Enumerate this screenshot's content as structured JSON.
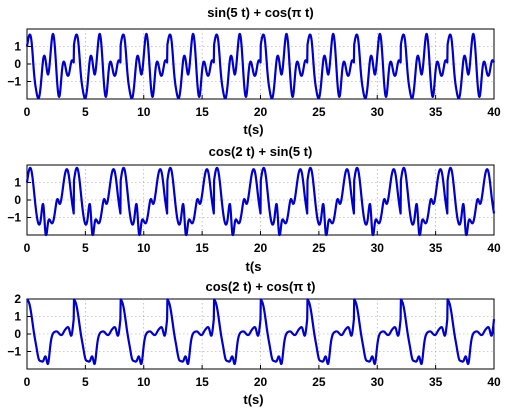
{
  "chart_data": [
    {
      "type": "line",
      "title": "sin(5 t) + cos(π t)",
      "xlabel": "t(s)",
      "ylabel": "",
      "xlim": [
        0,
        40
      ],
      "ylim": [
        -2,
        2
      ],
      "xticks": [
        0,
        5,
        10,
        15,
        20,
        25,
        30,
        35,
        40
      ],
      "yticks": [
        -1,
        0,
        1
      ],
      "grid": true,
      "series": [
        {
          "expression": "sin(5 t) + cos(π t)",
          "color": "#0000cc",
          "x": [
            0,
            0.2,
            0.4,
            0.6,
            0.8,
            1,
            1.2,
            1.4,
            1.6,
            1.8,
            2,
            2.2,
            2.4,
            2.6,
            2.8,
            3,
            3.2,
            3.4,
            3.6,
            3.8,
            4
          ],
          "y": [
            1.0,
            1.65,
            1.22,
            -0.5,
            -1.56,
            -1.96,
            -1.08,
            0.32,
            0.18,
            -0.6,
            0.46,
            1.7,
            0.85,
            -1.18,
            -1.79,
            -0.35,
            0.1,
            -0.52,
            -0.56,
            0.14,
            0.09
          ]
        }
      ]
    },
    {
      "type": "line",
      "title": "cos(2 t) + sin(5 t)",
      "xlabel": "t(s",
      "ylabel": "",
      "xlim": [
        0,
        40
      ],
      "ylim": [
        -2,
        2
      ],
      "xticks": [
        0,
        5,
        10,
        15,
        20,
        25,
        30,
        35,
        40
      ],
      "yticks": [
        -1,
        0,
        1
      ],
      "grid": true,
      "series": [
        {
          "expression": "cos(2 t) + sin(5 t)",
          "color": "#0000cc",
          "x": [
            0,
            0.2,
            0.4,
            0.6,
            0.8,
            1,
            1.2,
            1.4,
            1.6,
            1.8,
            2,
            2.2,
            2.4,
            2.6,
            2.8,
            3,
            3.2,
            3.4,
            3.6,
            3.8,
            4
          ],
          "y": [
            1.0,
            1.76,
            1.61,
            0.5,
            -0.73,
            -1.38,
            -1.02,
            -0.29,
            -1.99,
            -1.3,
            -1.2,
            -1.3,
            -0.66,
            0.05,
            -0.22,
            0.31,
            1.28,
            1.76,
            1.32,
            0.17,
            -0.77
          ]
        }
      ]
    },
    {
      "type": "line",
      "title": "cos(2 t) + cos(π t)",
      "xlabel": "t(s)",
      "ylabel": "",
      "xlim": [
        0,
        40
      ],
      "ylim": [
        -2,
        2
      ],
      "xticks": [
        0,
        5,
        10,
        15,
        20,
        25,
        30,
        35,
        40
      ],
      "yticks": [
        -1,
        0,
        1,
        2
      ],
      "grid": true,
      "series": [
        {
          "expression": "cos(2 t) + cos(π t)",
          "color": "#0000cc",
          "x": [
            0,
            0.2,
            0.4,
            0.6,
            0.8,
            1,
            1.2,
            1.4,
            1.6,
            1.8,
            2,
            2.2,
            2.4,
            2.6,
            2.8,
            3,
            3.2,
            3.4,
            3.6,
            3.8,
            4
          ],
          "y": [
            2.0,
            1.73,
            1.0,
            0.05,
            -0.72,
            -1.42,
            -1.55,
            -1.53,
            -1.3,
            -1.7,
            -0.65,
            -0.01,
            0.13,
            0.13,
            -0.01,
            -0.04,
            0.18,
            0.35,
            0.3,
            -0.09,
            0.85
          ]
        }
      ]
    }
  ]
}
